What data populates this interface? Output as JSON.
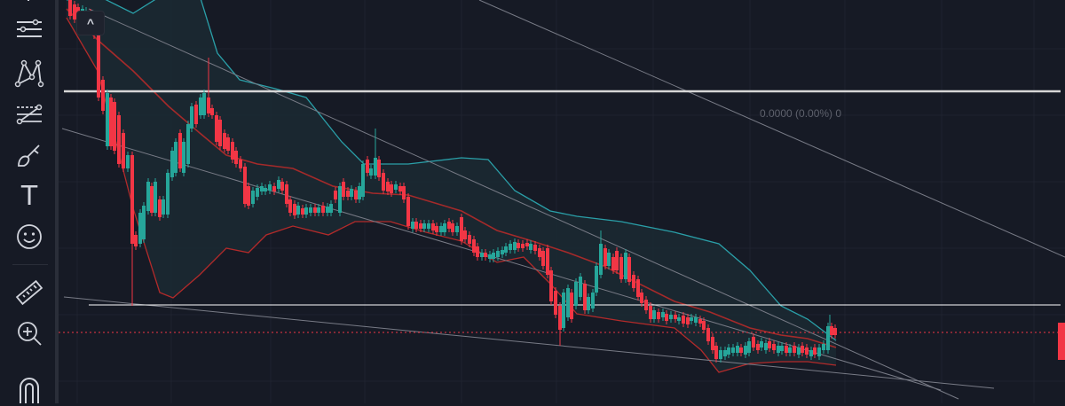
{
  "toolbar": {
    "tools": [
      {
        "name": "cursor-tool",
        "icon": "cursor-icon"
      },
      {
        "name": "trend-line-tool",
        "icon": "horizontal-lines-icon"
      },
      {
        "name": "pattern-tool",
        "icon": "xabcd-pattern-icon"
      },
      {
        "name": "forecast-tool",
        "icon": "prediction-icon"
      },
      {
        "name": "brush-tool",
        "icon": "brush-icon"
      },
      {
        "name": "text-tool",
        "icon": "text-icon",
        "glyph": "T"
      },
      {
        "name": "emoji-tool",
        "icon": "smiley-icon"
      },
      {
        "name": "ruler-tool",
        "icon": "ruler-icon"
      },
      {
        "name": "zoom-tool",
        "icon": "zoom-in-icon"
      },
      {
        "name": "magnet-tool",
        "icon": "magnet-icon"
      }
    ]
  },
  "chart": {
    "fib_label": "0.0000 (0.00%) 0",
    "collapse_glyph": "^",
    "colors": {
      "background": "#161a25",
      "grid": "#1f2330",
      "up_candle": "#26a69a",
      "down_candle": "#f23645",
      "bb_upper": "#2a9fa8",
      "bb_basis": "#a52a2a",
      "bb_lower": "#b22a2a",
      "bb_fill": "#1b2a33",
      "horizontal_line": "#d6d6d6",
      "trend_line": "#787b86",
      "price_line": "#f23645"
    }
  }
}
